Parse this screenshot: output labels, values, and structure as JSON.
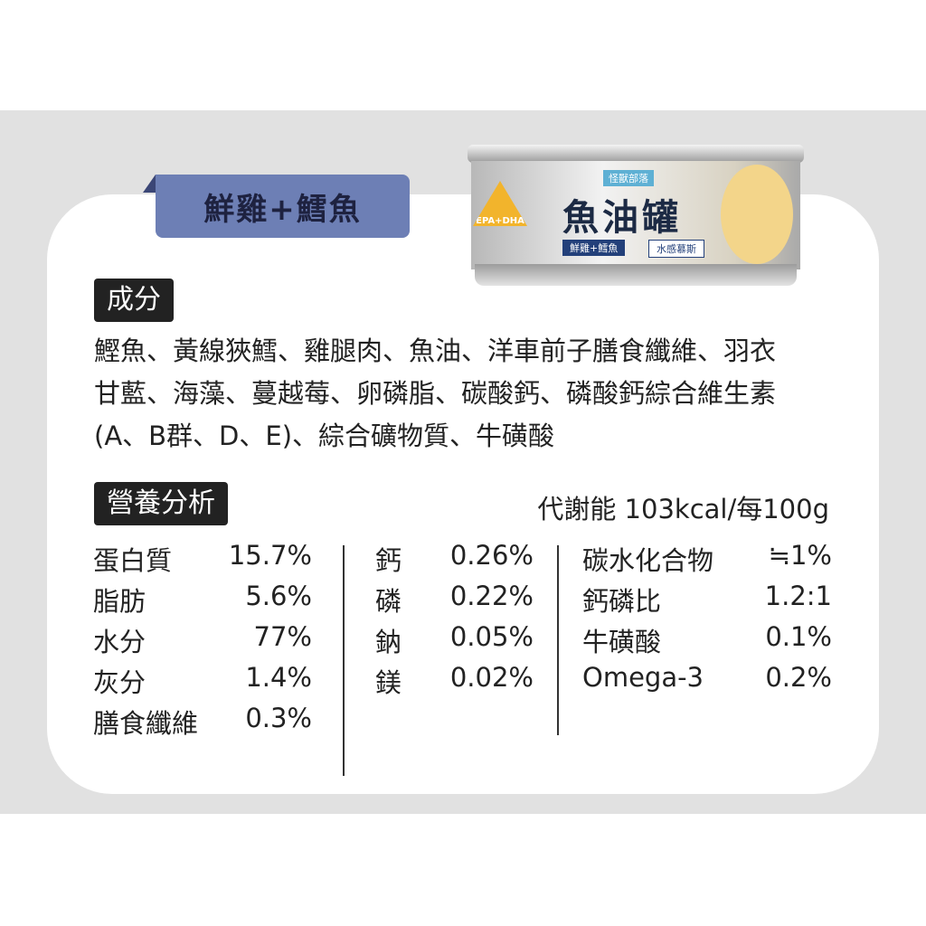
{
  "header": {
    "variant": "鮮雞+鱈魚"
  },
  "can": {
    "brand": "怪獸部落",
    "badge": "EPA+DHA",
    "product": "魚油罐",
    "flavor": "鮮雞+鱈魚",
    "texture": "水感慕斯"
  },
  "ingredients": {
    "title": "成分",
    "lines": [
      "鰹魚、黃線狹鱈、雞腿肉、魚油、洋車前子膳食纖維、羽衣",
      "甘藍、海藻、蔓越莓、卵磷脂、碳酸鈣、磷酸鈣綜合維生素",
      "(A、B群、D、E)、綜合礦物質、牛磺酸"
    ]
  },
  "nutrition": {
    "title": "營養分析",
    "energy": "代謝能 103kcal/每100g",
    "columns": [
      [
        {
          "name": "蛋白質",
          "value": "15.7%"
        },
        {
          "name": "脂肪",
          "value": "5.6%"
        },
        {
          "name": "水分",
          "value": "77%"
        },
        {
          "name": "灰分",
          "value": "1.4%"
        },
        {
          "name": "膳食纖維",
          "value": "0.3%"
        }
      ],
      [
        {
          "name": "鈣",
          "value": "0.26%"
        },
        {
          "name": "磷",
          "value": "0.22%"
        },
        {
          "name": "鈉",
          "value": "0.05%"
        },
        {
          "name": "鎂",
          "value": "0.02%"
        }
      ],
      [
        {
          "name": "碳水化合物",
          "value": "≒1%"
        },
        {
          "name": "鈣磷比",
          "value": "1.2:1"
        },
        {
          "name": "牛磺酸",
          "value": "0.1%"
        },
        {
          "name": "Omega-3",
          "value": "0.2%"
        }
      ]
    ]
  }
}
